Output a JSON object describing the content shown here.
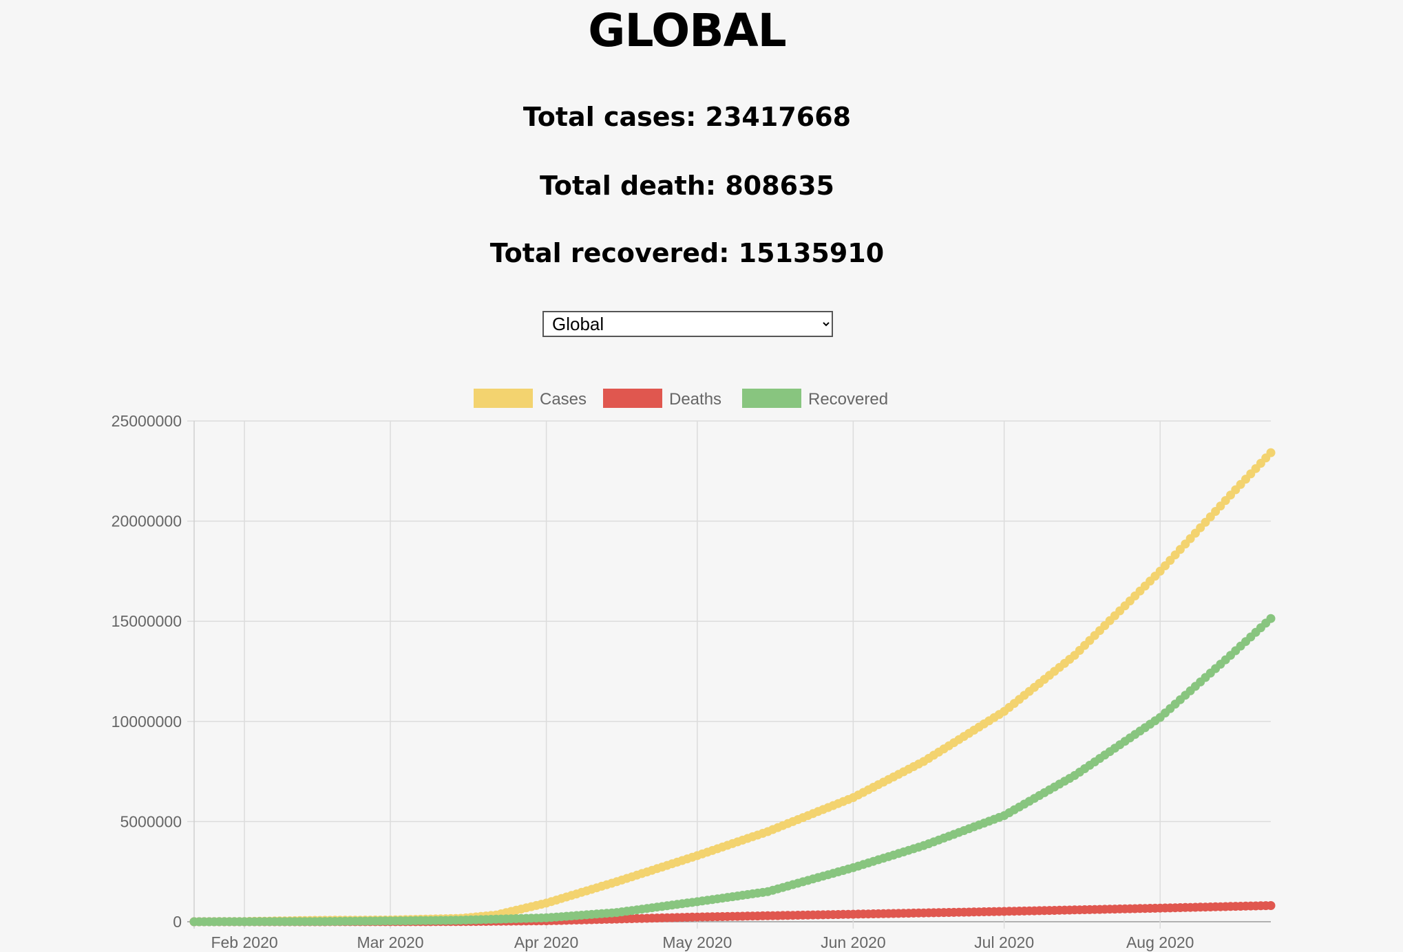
{
  "page": {
    "title": "GLOBAL",
    "stats": {
      "cases": "Total cases: 23417668",
      "deaths": "Total death: 808635",
      "recovered": "Total recovered: 15135910"
    },
    "region_select": {
      "selected": "Global",
      "options": [
        "Global"
      ]
    }
  },
  "chart_data": {
    "type": "line",
    "title": "",
    "xlabel": "",
    "ylabel": "",
    "x_range": [
      "2020-01-22",
      "2020-08-23"
    ],
    "ylim": [
      0,
      25000000
    ],
    "y_ticks": [
      0,
      5000000,
      10000000,
      15000000,
      20000000,
      25000000
    ],
    "y_tick_labels": [
      "0",
      "5000000",
      "10000000",
      "15000000",
      "20000000",
      "25000000"
    ],
    "x_ticks": [
      "2020-02-01",
      "2020-03-01",
      "2020-04-01",
      "2020-05-01",
      "2020-06-01",
      "2020-07-01",
      "2020-08-01"
    ],
    "x_tick_labels": [
      "Feb 2020",
      "Mar 2020",
      "Apr 2020",
      "May 2020",
      "Jun 2020",
      "Jul 2020",
      "Aug 2020"
    ],
    "grid": true,
    "legend_position": "top-center",
    "series": [
      {
        "name": "Cases",
        "color": "#f3d36f",
        "points": [
          [
            "2020-01-22",
            555
          ],
          [
            "2020-02-01",
            12000
          ],
          [
            "2020-02-15",
            69000
          ],
          [
            "2020-03-01",
            88000
          ],
          [
            "2020-03-15",
            170000
          ],
          [
            "2020-03-22",
            337000
          ],
          [
            "2020-04-01",
            930000
          ],
          [
            "2020-04-15",
            2000000
          ],
          [
            "2020-05-01",
            3300000
          ],
          [
            "2020-05-15",
            4500000
          ],
          [
            "2020-06-01",
            6200000
          ],
          [
            "2020-06-15",
            8000000
          ],
          [
            "2020-07-01",
            10500000
          ],
          [
            "2020-07-15",
            13300000
          ],
          [
            "2020-08-01",
            17500000
          ],
          [
            "2020-08-15",
            21300000
          ],
          [
            "2020-08-23",
            23417668
          ]
        ]
      },
      {
        "name": "Deaths",
        "color": "#e0574f",
        "points": [
          [
            "2020-01-22",
            17
          ],
          [
            "2020-02-15",
            1500
          ],
          [
            "2020-03-01",
            3000
          ],
          [
            "2020-03-15",
            6500
          ],
          [
            "2020-04-01",
            47000
          ],
          [
            "2020-04-15",
            135000
          ],
          [
            "2020-05-01",
            235000
          ],
          [
            "2020-06-01",
            375000
          ],
          [
            "2020-07-01",
            515000
          ],
          [
            "2020-08-01",
            680000
          ],
          [
            "2020-08-23",
            808635
          ]
        ]
      },
      {
        "name": "Recovered",
        "color": "#88c57f",
        "points": [
          [
            "2020-01-22",
            28
          ],
          [
            "2020-02-15",
            10000
          ],
          [
            "2020-03-01",
            42000
          ],
          [
            "2020-03-15",
            78000
          ],
          [
            "2020-04-01",
            195000
          ],
          [
            "2020-04-15",
            460000
          ],
          [
            "2020-05-01",
            1000000
          ],
          [
            "2020-05-15",
            1500000
          ],
          [
            "2020-06-01",
            2700000
          ],
          [
            "2020-06-15",
            3800000
          ],
          [
            "2020-07-01",
            5300000
          ],
          [
            "2020-07-15",
            7300000
          ],
          [
            "2020-08-01",
            10200000
          ],
          [
            "2020-08-15",
            13300000
          ],
          [
            "2020-08-23",
            15135910
          ]
        ]
      }
    ]
  }
}
